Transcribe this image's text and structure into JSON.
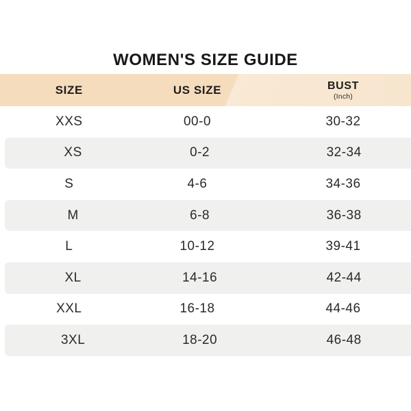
{
  "page": {
    "title": "WOMEN'S SIZE GUIDE"
  },
  "table": {
    "columns": [
      {
        "label": "SIZE"
      },
      {
        "label": "US SIZE"
      },
      {
        "label": "BUST",
        "sublabel": "(Inch)"
      }
    ],
    "rows": [
      {
        "size": "XXS",
        "us_size": "00-0",
        "bust": "30-32"
      },
      {
        "size": "XS",
        "us_size": "0-2",
        "bust": "32-34"
      },
      {
        "size": "S",
        "us_size": "4-6",
        "bust": "34-36"
      },
      {
        "size": "M",
        "us_size": "6-8",
        "bust": "36-38"
      },
      {
        "size": "L",
        "us_size": "10-12",
        "bust": "39-41"
      },
      {
        "size": "XL",
        "us_size": "14-16",
        "bust": "42-44"
      },
      {
        "size": "XXL",
        "us_size": "16-18",
        "bust": "44-46"
      },
      {
        "size": "3XL",
        "us_size": "18-20",
        "bust": "46-48"
      }
    ],
    "colors": {
      "header_peach_dark": "#f5dcbd",
      "header_peach_light": "#f9e9d5",
      "row_alt_gray": "#f0f0ef",
      "text": "#2a2a2a"
    }
  }
}
